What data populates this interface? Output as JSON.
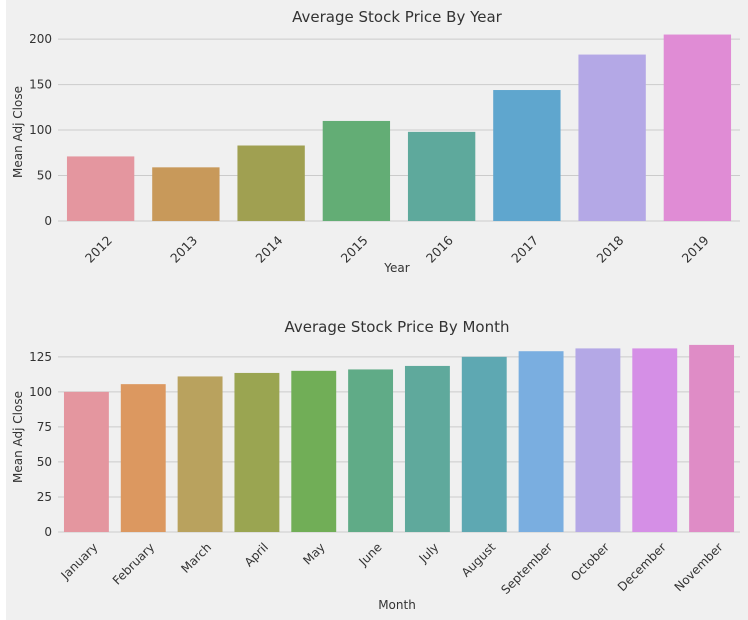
{
  "chart_data": [
    {
      "type": "bar",
      "title": "Average Stock Price By Year",
      "xlabel": "Year",
      "ylabel": "Mean Adj Close",
      "ylim": [
        0,
        210
      ],
      "yticks": [
        0,
        50,
        100,
        150,
        200
      ],
      "grid": true,
      "categories": [
        "2012",
        "2013",
        "2014",
        "2015",
        "2016",
        "2017",
        "2018",
        "2019"
      ],
      "values": [
        71,
        59,
        83,
        110,
        98,
        144,
        183,
        205
      ],
      "colors": [
        "#e4969f",
        "#c8995a",
        "#a0a051",
        "#63ad75",
        "#5ea99c",
        "#5fa6ce",
        "#b4a8e6",
        "#e08cd5"
      ]
    },
    {
      "type": "bar",
      "title": "Average Stock Price By Month",
      "xlabel": "Month",
      "ylabel": "Mean Adj Close",
      "ylim": [
        0,
        137
      ],
      "yticks": [
        0,
        25,
        50,
        75,
        100,
        125
      ],
      "grid": true,
      "categories": [
        "January",
        "February",
        "March",
        "April",
        "May",
        "June",
        "July",
        "August",
        "September",
        "October",
        "December",
        "November"
      ],
      "values": [
        100,
        105.5,
        111,
        113.5,
        115,
        116,
        118.5,
        125,
        129,
        131,
        131,
        133.5
      ],
      "colors": [
        "#e4969f",
        "#dc9860",
        "#b9a25e",
        "#9aa551",
        "#71ae57",
        "#60ab87",
        "#5fa99c",
        "#5ea8b2",
        "#7aaee0",
        "#b4a8e6",
        "#d58fe6",
        "#df8cc6"
      ]
    }
  ]
}
